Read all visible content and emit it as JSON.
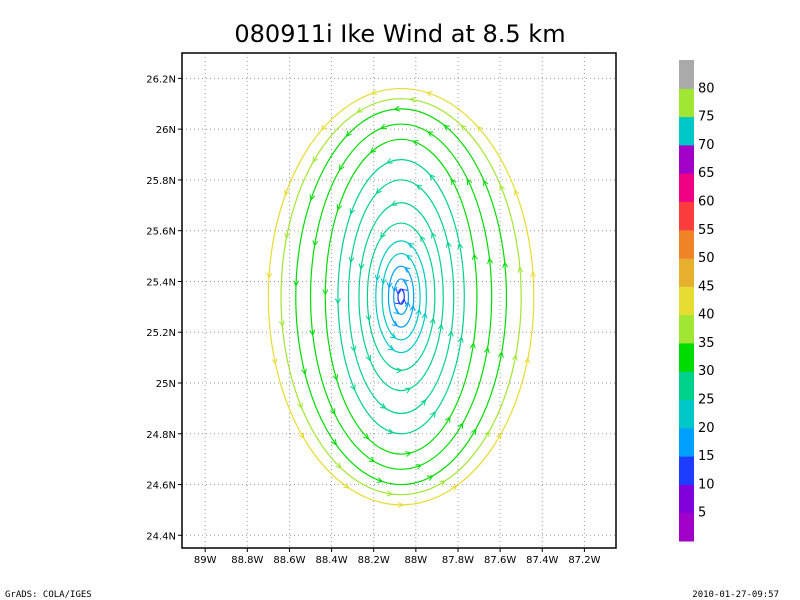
{
  "chart_data": {
    "type": "streamline",
    "title": "080911i Ike Wind at 8.5 km",
    "xlabel": "",
    "ylabel": "",
    "x_ticks": [
      {
        "value": -89.0,
        "label": "89W"
      },
      {
        "value": -88.8,
        "label": "88.8W"
      },
      {
        "value": -88.6,
        "label": "88.6W"
      },
      {
        "value": -88.4,
        "label": "88.4W"
      },
      {
        "value": -88.2,
        "label": "88.2W"
      },
      {
        "value": -88.0,
        "label": "88W"
      },
      {
        "value": -87.8,
        "label": "87.8W"
      },
      {
        "value": -87.6,
        "label": "87.6W"
      },
      {
        "value": -87.4,
        "label": "87.4W"
      },
      {
        "value": -87.2,
        "label": "87.2W"
      }
    ],
    "y_ticks": [
      {
        "value": 24.4,
        "label": "24.4N"
      },
      {
        "value": 24.6,
        "label": "24.6N"
      },
      {
        "value": 24.8,
        "label": "24.8N"
      },
      {
        "value": 25.0,
        "label": "25N"
      },
      {
        "value": 25.2,
        "label": "25.2N"
      },
      {
        "value": 25.4,
        "label": "25.4N"
      },
      {
        "value": 25.6,
        "label": "25.6N"
      },
      {
        "value": 25.8,
        "label": "25.8N"
      },
      {
        "value": 26.0,
        "label": "26N"
      },
      {
        "value": 26.2,
        "label": "26.2N"
      }
    ],
    "xlim": [
      -89.11,
      -87.05
    ],
    "ylim": [
      24.35,
      26.3
    ],
    "grid": true,
    "vortex_center": {
      "lon": -88.07,
      "lat": 25.34
    },
    "streamlines": [
      {
        "rx": 0.015,
        "ry": 0.03,
        "speed": 12
      },
      {
        "rx": 0.035,
        "ry": 0.07,
        "speed": 15
      },
      {
        "rx": 0.06,
        "ry": 0.12,
        "speed": 18
      },
      {
        "rx": 0.09,
        "ry": 0.17,
        "speed": 21
      },
      {
        "rx": 0.12,
        "ry": 0.22,
        "speed": 23
      },
      {
        "rx": 0.16,
        "ry": 0.29,
        "speed": 25
      },
      {
        "rx": 0.2,
        "ry": 0.37,
        "speed": 26
      },
      {
        "rx": 0.25,
        "ry": 0.46,
        "speed": 27
      },
      {
        "rx": 0.3,
        "ry": 0.54,
        "speed": 28
      },
      {
        "rx": 0.36,
        "ry": 0.62,
        "speed": 30
      },
      {
        "rx": 0.43,
        "ry": 0.68,
        "speed": 32
      },
      {
        "rx": 0.5,
        "ry": 0.74,
        "speed": 34
      },
      {
        "rx": 0.57,
        "ry": 0.78,
        "speed": 37
      },
      {
        "rx": 0.63,
        "ry": 0.82,
        "speed": 40
      }
    ],
    "colorbar": {
      "labels": [
        "5",
        "10",
        "15",
        "20",
        "25",
        "30",
        "35",
        "40",
        "45",
        "50",
        "55",
        "60",
        "65",
        "70",
        "75",
        "80"
      ],
      "colors": [
        "#a000c8",
        "#8200dc",
        "#1e3cff",
        "#00a0ff",
        "#00c8c8",
        "#00d28c",
        "#00dc00",
        "#a0e632",
        "#e6dc32",
        "#e6af2d",
        "#f08228",
        "#fa3c3c",
        "#f00082",
        "#a000c8",
        "#00c8c8",
        "#a0e632",
        "#aaaaaa"
      ]
    }
  },
  "footer": {
    "left": "GrADS: COLA/IGES",
    "right": "2010-01-27-09:57"
  }
}
